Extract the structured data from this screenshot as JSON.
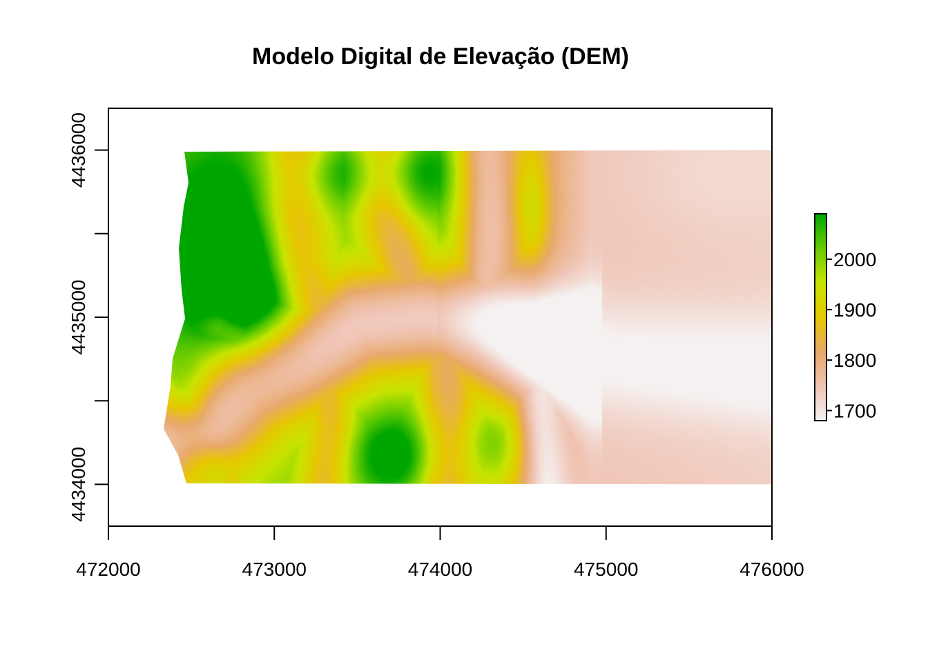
{
  "chart_data": {
    "type": "heatmap",
    "title": "Modelo Digital de Elevação (DEM)",
    "xlabel": "",
    "ylabel": "",
    "xlim": [
      472000,
      476000
    ],
    "ylim": [
      4433750,
      4436250
    ],
    "x_ticks": [
      472000,
      473000,
      474000,
      475000,
      476000
    ],
    "x_tick_labels": [
      "472000",
      "473000",
      "474000",
      "475000",
      "476000"
    ],
    "y_ticks": [
      4434000,
      4434500,
      4435000,
      4435500,
      4436000
    ],
    "y_tick_labels": [
      "4434000",
      "",
      "4435000",
      "",
      "4436000"
    ],
    "raster_extent": {
      "xmin": 472330,
      "xmax": 476000,
      "ymin": 4434000,
      "ymax": 4436000
    },
    "value_range": [
      1680,
      2090
    ],
    "colorbar": {
      "ticks": [
        1700,
        1800,
        1900,
        2000
      ],
      "tick_labels": [
        "1700",
        "1800",
        "1900",
        "2000"
      ],
      "colors": [
        "#f5f1f1",
        "#f0c4b4",
        "#e8a96a",
        "#e6c800",
        "#c8e400",
        "#66cc00",
        "#00a600"
      ]
    }
  }
}
